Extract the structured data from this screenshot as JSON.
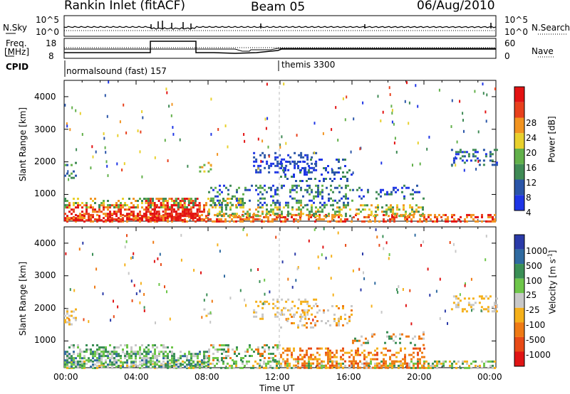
{
  "header": {
    "station": "Rankin Inlet (fitACF)",
    "beam": "Beam 05",
    "date": "06/Aug/2010"
  },
  "summary_panel": {
    "nsky_label": "N.Sky",
    "nsky_ticks": [
      "10^5",
      "10^0"
    ],
    "nsearch_label": "N.Search",
    "nsearch_ticks": [
      "10^5",
      "10^0"
    ],
    "freq_label_1": "Freq.",
    "freq_label_2": "[MHz]",
    "freq_ticks": [
      "18",
      "8"
    ],
    "nave_label": "Nave",
    "nave_ticks": [
      "60",
      "0"
    ],
    "cpid_label": "CPID",
    "cpid_segments": [
      {
        "label": "normalsound (fast) 157",
        "start": "00:00"
      },
      {
        "label": "themis 3300",
        "start": "12:00"
      }
    ]
  },
  "chart_data": [
    {
      "type": "heatmap",
      "name": "power",
      "ylabel": "Slant Range [km]",
      "ylim": [
        180,
        4500
      ],
      "yticks": [
        "1000",
        "2000",
        "3000",
        "4000"
      ],
      "xlim": [
        "00:00",
        "24:00"
      ],
      "colorbar_label": "Power [dB]",
      "colorbar_ticks": [
        "4",
        "8",
        "12",
        "16",
        "20",
        "24",
        "28"
      ],
      "colors": [
        "#1e35e6",
        "#2a55a8",
        "#3f8a55",
        "#62b04a",
        "#e8d02c",
        "#f29420",
        "#e8401c",
        "#e31212"
      ]
    },
    {
      "type": "heatmap",
      "name": "velocity",
      "ylabel": "Slant Range [km]",
      "ylim": [
        180,
        4500
      ],
      "yticks": [
        "1000",
        "2000",
        "3000",
        "4000"
      ],
      "xlim": [
        "00:00",
        "24:00"
      ],
      "xlabel": "Time UT",
      "xticks": [
        "00:00",
        "04:00",
        "08:00",
        "12:00",
        "16:00",
        "20:00",
        "00:00"
      ],
      "colorbar_label": "Velocity [m s",
      "colorbar_label_sup": "-1",
      "colorbar_label_end": "]",
      "colorbar_ticks": [
        "1000",
        "500",
        "100",
        "25",
        "-25",
        "-100",
        "-500",
        "-1000"
      ],
      "colors": [
        "#2a3aa8",
        "#2f6aa0",
        "#3a8f55",
        "#6ec64a",
        "#c8c8c8",
        "#f5b01a",
        "#ef7a14",
        "#e84a16",
        "#e01414"
      ]
    }
  ]
}
